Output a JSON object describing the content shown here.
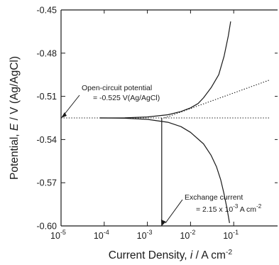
{
  "chart_data": {
    "type": "line",
    "x_scale": "log",
    "xlim": [
      1e-05,
      1.0
    ],
    "ylim": [
      -0.6,
      -0.45
    ],
    "x_ticks": [
      {
        "value": 1e-05,
        "base": "10",
        "exp": "-5"
      },
      {
        "value": 0.0001,
        "base": "10",
        "exp": "-4"
      },
      {
        "value": 0.001,
        "base": "10",
        "exp": "-3"
      },
      {
        "value": 0.01,
        "base": "10",
        "exp": "-2"
      },
      {
        "value": 0.1,
        "base": "10",
        "exp": "-1"
      }
    ],
    "y_ticks": [
      {
        "value": -0.45,
        "label": "-0.45"
      },
      {
        "value": -0.48,
        "label": "-0.48"
      },
      {
        "value": -0.51,
        "label": "-0.51"
      },
      {
        "value": -0.54,
        "label": "-0.54"
      },
      {
        "value": -0.57,
        "label": "-0.57"
      },
      {
        "value": -0.6,
        "label": "-0.60"
      }
    ],
    "xlabel": {
      "prefix": "Current Density, ",
      "var": "i",
      "unit": " / A cm",
      "unit_exp": "-2"
    },
    "ylabel": {
      "prefix": "Potential, ",
      "var": "E",
      "unit": " / V (Ag/AgCl)"
    },
    "grid": false,
    "series": [
      {
        "style": "solid",
        "points": [
          [
            8e-05,
            -0.525
          ],
          [
            0.0003,
            -0.5249
          ],
          [
            0.001,
            -0.5243
          ],
          [
            0.003,
            -0.5228
          ],
          [
            0.006,
            -0.5205
          ],
          [
            0.01,
            -0.518
          ],
          [
            0.015,
            -0.515
          ],
          [
            0.02,
            -0.511
          ],
          [
            0.03,
            -0.504
          ],
          [
            0.045,
            -0.495
          ],
          [
            0.06,
            -0.482
          ],
          [
            0.075,
            -0.468
          ],
          [
            0.085,
            -0.458
          ]
        ]
      },
      {
        "style": "solid",
        "points": [
          [
            8e-05,
            -0.525
          ],
          [
            0.0003,
            -0.5252
          ],
          [
            0.001,
            -0.526
          ],
          [
            0.003,
            -0.528
          ],
          [
            0.006,
            -0.531
          ],
          [
            0.01,
            -0.535
          ],
          [
            0.02,
            -0.543
          ],
          [
            0.03,
            -0.551
          ],
          [
            0.04,
            -0.559
          ],
          [
            0.05,
            -0.568
          ],
          [
            0.06,
            -0.578
          ],
          [
            0.07,
            -0.588
          ],
          [
            0.08,
            -0.598
          ]
        ]
      },
      {
        "style": "dotted",
        "points": [
          [
            1e-05,
            -0.525
          ],
          [
            0.7,
            -0.525
          ]
        ]
      },
      {
        "style": "dotted",
        "points": [
          [
            0.0025,
            -0.525
          ],
          [
            0.7,
            -0.4985
          ]
        ]
      },
      {
        "style": "solid",
        "points": [
          [
            0.00215,
            -0.525
          ],
          [
            0.00215,
            -0.6
          ]
        ]
      }
    ],
    "annotations": [
      {
        "id": "ocp",
        "line1": "Open-circuit potential",
        "line2": "= -0.525 V(Ag/AgCl)",
        "target": [
          1e-05,
          -0.525
        ]
      },
      {
        "id": "exchange",
        "line1": "Exchange current",
        "line2_prefix": "= 2.15 x 10",
        "line2_exp": "-3",
        "line2_suffix": " A cm",
        "line2_exp2": "-2",
        "target": [
          0.00215,
          -0.6
        ]
      }
    ]
  }
}
